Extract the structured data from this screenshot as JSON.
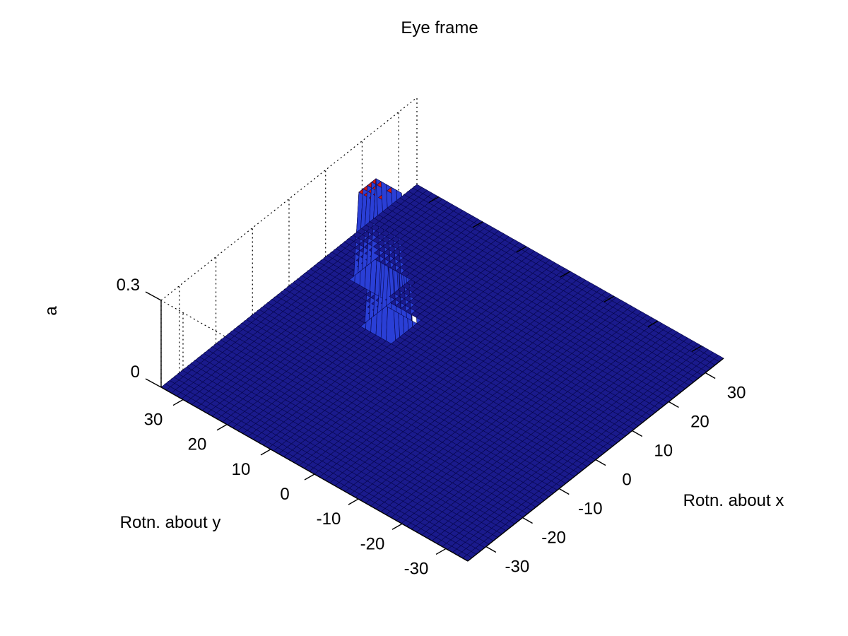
{
  "chart_data": {
    "type": "surface3d",
    "title": "Eye frame",
    "xlabel": "Rotn. about x",
    "ylabel": "Rotn. about y",
    "zlabel": "a",
    "xlim": [
      -35,
      35
    ],
    "ylim": [
      -35,
      35
    ],
    "zlim": [
      0,
      0.3
    ],
    "xticks": [
      -30,
      -20,
      -10,
      0,
      10,
      20,
      30
    ],
    "yticks": [
      -30,
      -20,
      -10,
      0,
      10,
      20,
      30
    ],
    "zticks": [
      0,
      0.3
    ],
    "grid": true,
    "base_value": 0,
    "peaks": [
      {
        "x": 12,
        "y": 24,
        "height": 0.3,
        "half_width": 3
      },
      {
        "x": 4,
        "y": 15,
        "height": 0.3,
        "half_width": 3
      }
    ],
    "colors": {
      "surface": "#1a1a8c",
      "surface_edge": "#06064a",
      "peak_top": "#cc1a10"
    }
  }
}
